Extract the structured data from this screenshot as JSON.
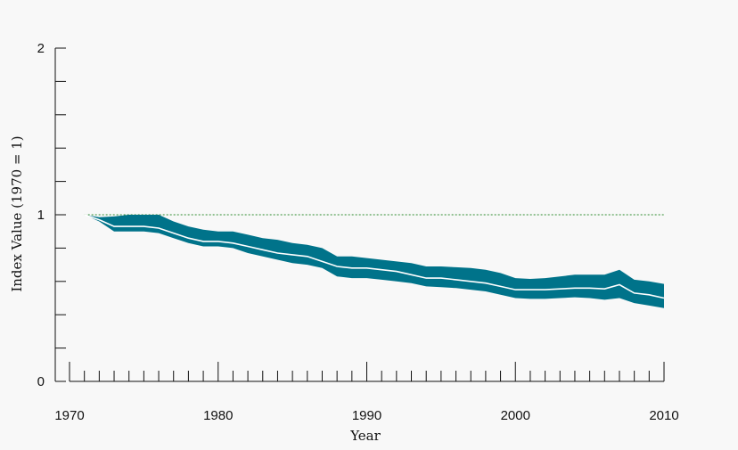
{
  "chart_data": {
    "type": "line",
    "title": "",
    "xlabel": "Year",
    "ylabel": "Index Value (1970 = 1)",
    "xlim": [
      1970,
      2010
    ],
    "ylim": [
      0,
      2
    ],
    "x_major_ticks": [
      "1970",
      "1980",
      "1990",
      "2000",
      "2010"
    ],
    "y_major_ticks": [
      "0",
      "1",
      "2"
    ],
    "y_minor_step": 0.2,
    "x_minor_step": 1,
    "reference_line": {
      "y": 1,
      "style": "dashed",
      "color": "#2e8b2e"
    },
    "colors": {
      "band": "#00738a",
      "line": "#ffffff",
      "axis": "#111111",
      "background": "#f8f8f8"
    },
    "series": [
      {
        "x": [
          1971,
          1972,
          1973,
          1974,
          1975,
          1976,
          1977,
          1978,
          1979,
          1980,
          1981,
          1982,
          1983,
          1984,
          1985,
          1986,
          1987,
          1988,
          1989,
          1990,
          1991,
          1992,
          1993,
          1994,
          1995,
          1996,
          1997,
          1998,
          1999,
          2000,
          2001,
          2002,
          2003,
          2004,
          2005,
          2006,
          2007,
          2008,
          2009,
          2010
        ],
        "y": [
          1.0,
          0.97,
          0.93,
          0.93,
          0.93,
          0.92,
          0.89,
          0.86,
          0.84,
          0.84,
          0.83,
          0.81,
          0.79,
          0.77,
          0.76,
          0.75,
          0.72,
          0.69,
          0.68,
          0.68,
          0.67,
          0.66,
          0.64,
          0.62,
          0.62,
          0.61,
          0.6,
          0.59,
          0.57,
          0.55,
          0.55,
          0.55,
          0.555,
          0.56,
          0.56,
          0.555,
          0.58,
          0.53,
          0.52,
          0.5
        ],
        "lower": [
          1.0,
          0.96,
          0.9,
          0.9,
          0.9,
          0.89,
          0.86,
          0.83,
          0.81,
          0.81,
          0.8,
          0.77,
          0.75,
          0.73,
          0.71,
          0.7,
          0.68,
          0.63,
          0.62,
          0.62,
          0.61,
          0.6,
          0.59,
          0.57,
          0.565,
          0.56,
          0.55,
          0.54,
          0.52,
          0.5,
          0.495,
          0.495,
          0.5,
          0.505,
          0.5,
          0.49,
          0.5,
          0.47,
          0.455,
          0.44
        ],
        "upper": [
          1.0,
          0.985,
          0.99,
          1.0,
          1.0,
          1.0,
          0.96,
          0.93,
          0.91,
          0.9,
          0.9,
          0.88,
          0.86,
          0.85,
          0.83,
          0.82,
          0.8,
          0.75,
          0.75,
          0.74,
          0.73,
          0.72,
          0.71,
          0.69,
          0.69,
          0.685,
          0.68,
          0.67,
          0.65,
          0.62,
          0.615,
          0.62,
          0.63,
          0.64,
          0.64,
          0.64,
          0.67,
          0.61,
          0.6,
          0.585
        ]
      }
    ]
  }
}
